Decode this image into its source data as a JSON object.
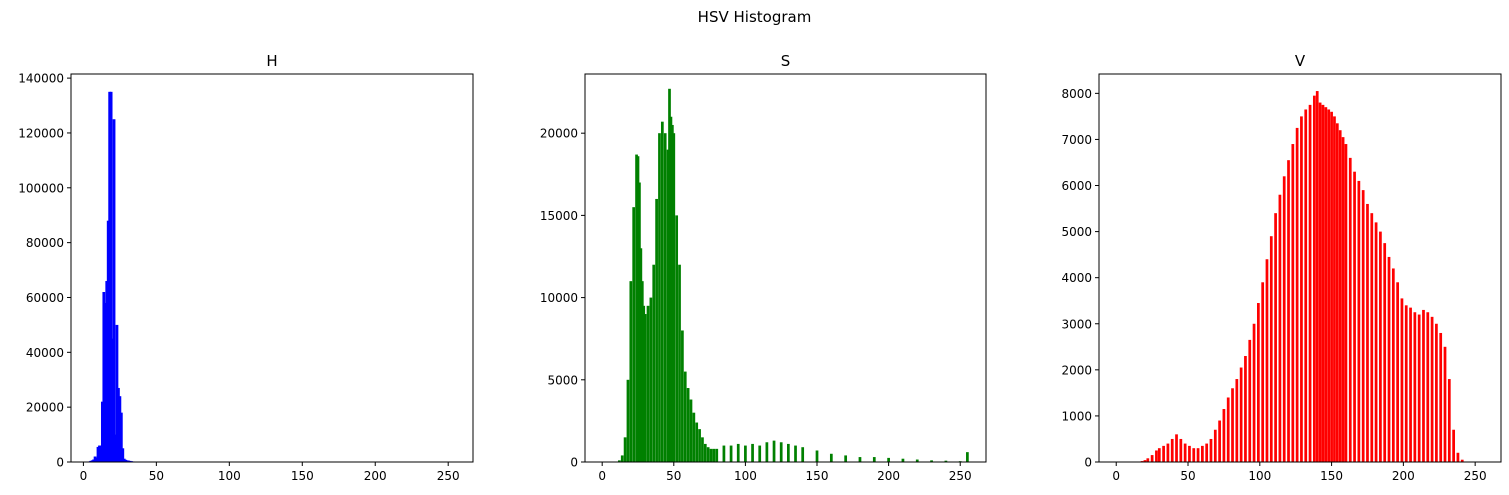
{
  "figure": {
    "suptitle": "HSV Histogram"
  },
  "chart_data": [
    {
      "type": "bar",
      "title": "H",
      "color": "#0000ff",
      "xlim": [
        -8.5,
        267
      ],
      "ylim": [
        0,
        141500
      ],
      "xticks": [
        0,
        50,
        100,
        150,
        200,
        250
      ],
      "yticks": [
        0,
        20000,
        40000,
        60000,
        80000,
        100000,
        120000,
        140000
      ],
      "x": [
        4,
        5,
        6,
        7,
        8,
        9,
        10,
        11,
        12,
        13,
        14,
        15,
        16,
        17,
        18,
        19,
        20,
        21,
        22,
        23,
        24,
        25,
        26,
        27,
        28,
        29,
        30,
        31,
        32,
        33,
        34,
        35
      ],
      "values": [
        200,
        400,
        600,
        900,
        2000,
        1500,
        5500,
        6000,
        6000,
        22000,
        62000,
        58000,
        66000,
        88000,
        135000,
        135000,
        45000,
        125000,
        10000,
        50000,
        27000,
        24000,
        18000,
        5000,
        1200,
        800,
        600,
        500,
        400,
        300,
        200,
        100
      ]
    },
    {
      "type": "bar",
      "title": "S",
      "color": "#008000",
      "xlim": [
        -12,
        268
      ],
      "ylim": [
        0,
        23600
      ],
      "xticks": [
        0,
        50,
        100,
        150,
        200,
        250
      ],
      "yticks": [
        0,
        5000,
        10000,
        15000,
        20000
      ],
      "x": [
        12,
        14,
        16,
        18,
        20,
        22,
        24,
        25,
        26,
        27,
        28,
        29,
        30,
        32,
        34,
        36,
        38,
        40,
        42,
        44,
        46,
        47,
        48,
        49,
        50,
        52,
        54,
        56,
        58,
        60,
        62,
        64,
        66,
        68,
        70,
        72,
        74,
        76,
        78,
        80,
        85,
        90,
        95,
        100,
        105,
        110,
        115,
        120,
        125,
        130,
        135,
        140,
        150,
        160,
        170,
        180,
        190,
        200,
        210,
        220,
        230,
        240,
        250,
        255
      ],
      "values": [
        100,
        400,
        1500,
        5000,
        11000,
        15500,
        18700,
        18600,
        17000,
        13000,
        11000,
        9500,
        9000,
        9500,
        10000,
        12000,
        16000,
        20000,
        20700,
        20000,
        19000,
        22700,
        21000,
        20500,
        20000,
        15000,
        12000,
        8000,
        5500,
        4500,
        3800,
        3000,
        2400,
        2000,
        1500,
        1100,
        900,
        800,
        800,
        800,
        1000,
        1000,
        1100,
        1000,
        1100,
        1000,
        1200,
        1300,
        1200,
        1100,
        1000,
        900,
        700,
        500,
        400,
        300,
        300,
        250,
        200,
        150,
        100,
        80,
        50,
        600
      ]
    },
    {
      "type": "bar",
      "title": "V",
      "color": "#ff0000",
      "xlim": [
        -12,
        268
      ],
      "ylim": [
        0,
        8420
      ],
      "xticks": [
        0,
        50,
        100,
        150,
        200,
        250
      ],
      "yticks": [
        0,
        1000,
        2000,
        3000,
        4000,
        5000,
        6000,
        7000,
        8000
      ],
      "x": [
        16,
        18,
        20,
        22,
        25,
        28,
        30,
        33,
        36,
        39,
        42,
        45,
        48,
        51,
        54,
        57,
        60,
        63,
        66,
        69,
        72,
        75,
        78,
        81,
        84,
        87,
        90,
        93,
        96,
        99,
        102,
        105,
        108,
        111,
        114,
        117,
        120,
        123,
        126,
        129,
        132,
        135,
        138,
        140,
        142,
        144,
        146,
        148,
        150,
        152,
        154,
        156,
        158,
        160,
        163,
        166,
        169,
        172,
        175,
        178,
        181,
        184,
        187,
        190,
        193,
        196,
        199,
        202,
        205,
        208,
        211,
        214,
        217,
        220,
        223,
        226,
        229,
        232,
        235,
        238,
        241,
        244,
        247
      ],
      "values": [
        5,
        20,
        40,
        80,
        150,
        250,
        300,
        350,
        400,
        500,
        600,
        500,
        400,
        350,
        300,
        300,
        350,
        400,
        500,
        700,
        900,
        1150,
        1400,
        1600,
        1800,
        2050,
        2300,
        2650,
        3000,
        3450,
        3900,
        4400,
        4900,
        5400,
        5800,
        6200,
        6550,
        6900,
        7250,
        7500,
        7650,
        7750,
        7950,
        8050,
        7800,
        7750,
        7700,
        7650,
        7600,
        7500,
        7350,
        7200,
        7050,
        6900,
        6600,
        6300,
        6100,
        5900,
        5600,
        5400,
        5200,
        5000,
        4750,
        4450,
        4200,
        3900,
        3550,
        3400,
        3350,
        3250,
        3200,
        3300,
        3250,
        3150,
        3000,
        2800,
        2500,
        1800,
        700,
        200,
        50,
        10,
        0
      ]
    }
  ]
}
